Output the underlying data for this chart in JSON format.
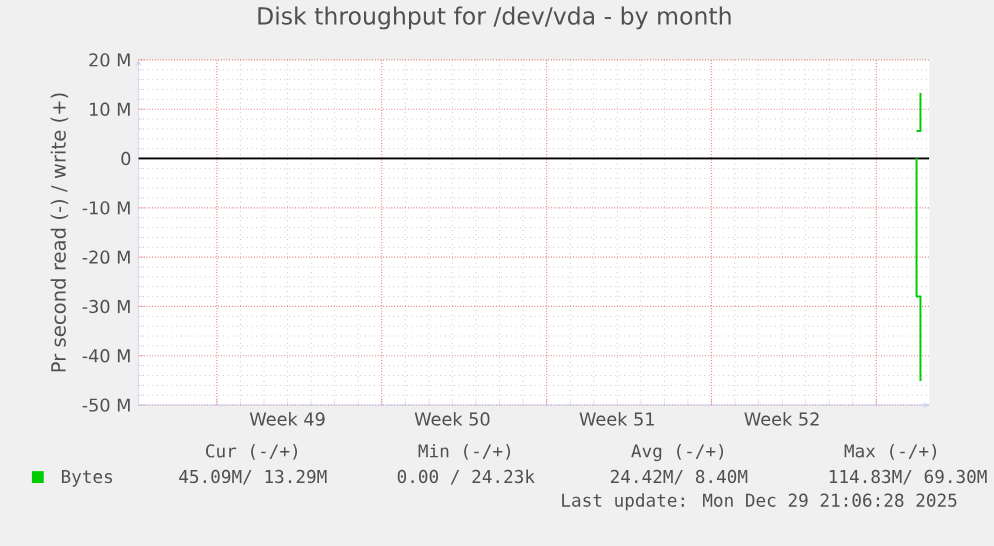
{
  "chart_data": {
    "type": "line",
    "title": "Disk throughput for /dev/vda - by month",
    "ylabel": "Pr second read (-) / write (+)",
    "xlim": [
      "2025-11-27T16:00",
      "2025-12-31T06:00"
    ],
    "xticks": [
      {
        "value": "2025-12-01",
        "label": null
      },
      {
        "value": "2025-12-04",
        "label": "Week 49"
      },
      {
        "value": "2025-12-08",
        "label": null
      },
      {
        "value": "2025-12-11",
        "label": "Week 50"
      },
      {
        "value": "2025-12-15",
        "label": null
      },
      {
        "value": "2025-12-18",
        "label": "Week 51"
      },
      {
        "value": "2025-12-22",
        "label": null
      },
      {
        "value": "2025-12-25",
        "label": "Week 52"
      },
      {
        "value": "2025-12-29",
        "label": null
      }
    ],
    "ylim": [
      -50,
      20
    ],
    "yticks": [
      {
        "value": -50,
        "label": "-50 M"
      },
      {
        "value": -40,
        "label": "-40 M"
      },
      {
        "value": -30,
        "label": "-30 M"
      },
      {
        "value": -20,
        "label": "-20 M"
      },
      {
        "value": -10,
        "label": "-10 M"
      },
      0,
      {
        "value": 10,
        "label": "10 M"
      },
      {
        "value": 20,
        "label": "20 M"
      }
    ],
    "grid": true,
    "legend": "bottom",
    "ref_lines": [
      {
        "axis": "y",
        "value": 0,
        "color": "#000000"
      }
    ],
    "series": [
      {
        "name": "Bytes",
        "type": "step",
        "color": "#00cc00",
        "x": [
          "2025-12-30T17:00",
          "2025-12-30T21:00"
        ],
        "values": [
          5.6,
          13.3
        ]
      },
      {
        "type": "step",
        "color": "#00cc00",
        "x": [
          "2025-12-30T16:00",
          "2025-12-30T17:00",
          "2025-12-30T21:00"
        ],
        "values": [
          0,
          -28,
          -45.1
        ]
      }
    ],
    "annotations": [
      "Cur (-/+)",
      "Min (-/+)",
      "Avg (-/+)",
      "Max (-/+)",
      "45.09M/ 13.29M",
      "0.00 / 24.23k",
      "24.42M/  8.40M",
      "114.83M/ 69.30M",
      "Last update: Mon Dec 29 21:06:28 2025"
    ]
  }
}
